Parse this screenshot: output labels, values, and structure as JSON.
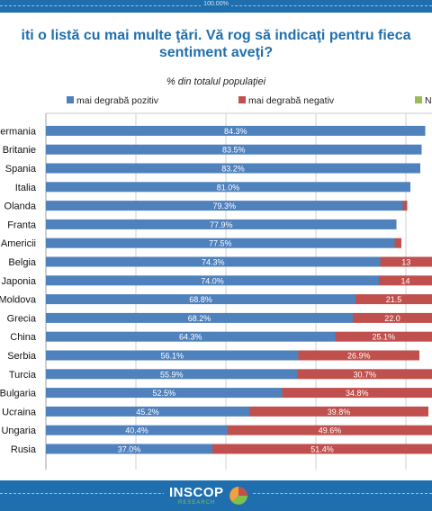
{
  "header": {
    "percent_label": "100.00%"
  },
  "title_line1": "iti o listă cu mai multe ţări. Vă rog să indicaţi pentru fieca",
  "title_line2": "sentiment aveţi?",
  "chart_data": {
    "type": "bar",
    "orientation": "horizontal",
    "stacked": true,
    "subtitle": "% din totalul populaţiei",
    "categories": [
      "ermania",
      "Britanie",
      "Spania",
      "Italia",
      "Olanda",
      "Franta",
      "Americii",
      "Belgia",
      "Japonia",
      "Moldova",
      "Grecia",
      "China",
      "Serbia",
      "Turcia",
      "Bulgaria",
      "Ucraina",
      "Ungaria",
      "Rusia"
    ],
    "series": [
      {
        "name": "mai degrabă pozitiv",
        "color": "#4f81bd",
        "values": [
          84.3,
          83.5,
          83.2,
          81.0,
          79.3,
          77.9,
          77.5,
          74.3,
          74.0,
          68.8,
          68.2,
          64.3,
          56.1,
          55.9,
          52.5,
          45.2,
          40.4,
          37.0
        ],
        "value_labels": [
          "84.3%",
          "83.5%",
          "83.2%",
          "81.0%",
          "79.3%",
          "77.9%",
          "77.5%",
          "74.3%",
          "74.0%",
          "68.8%",
          "68.2%",
          "64.3%",
          "56.1%",
          "55.9%",
          "52.5%",
          "45.2%",
          "40.4%",
          "37.0%"
        ]
      },
      {
        "name": "mai degrabă negativ",
        "color": "#c0504d",
        "values": [
          null,
          null,
          null,
          null,
          1.0,
          null,
          1.5,
          13.0,
          14.0,
          21.5,
          22.0,
          25.1,
          26.9,
          30.7,
          34.8,
          39.8,
          49.6,
          51.4
        ],
        "value_labels": [
          "",
          "",
          "",
          "",
          "",
          "",
          "",
          "13",
          "14",
          "21.5",
          "22.0",
          "25.1%",
          "26.9%",
          "30.7%",
          "34.8%",
          "39.8%",
          "49.6%",
          "51.4%"
        ]
      }
    ],
    "third_legend_entry": {
      "label": "N",
      "color": "#9bbb59"
    },
    "xlim": [
      0,
      100
    ],
    "grid": true,
    "legend_position": "top"
  },
  "logo": {
    "text": "INSCOP",
    "subtext": "RESEARCH"
  }
}
